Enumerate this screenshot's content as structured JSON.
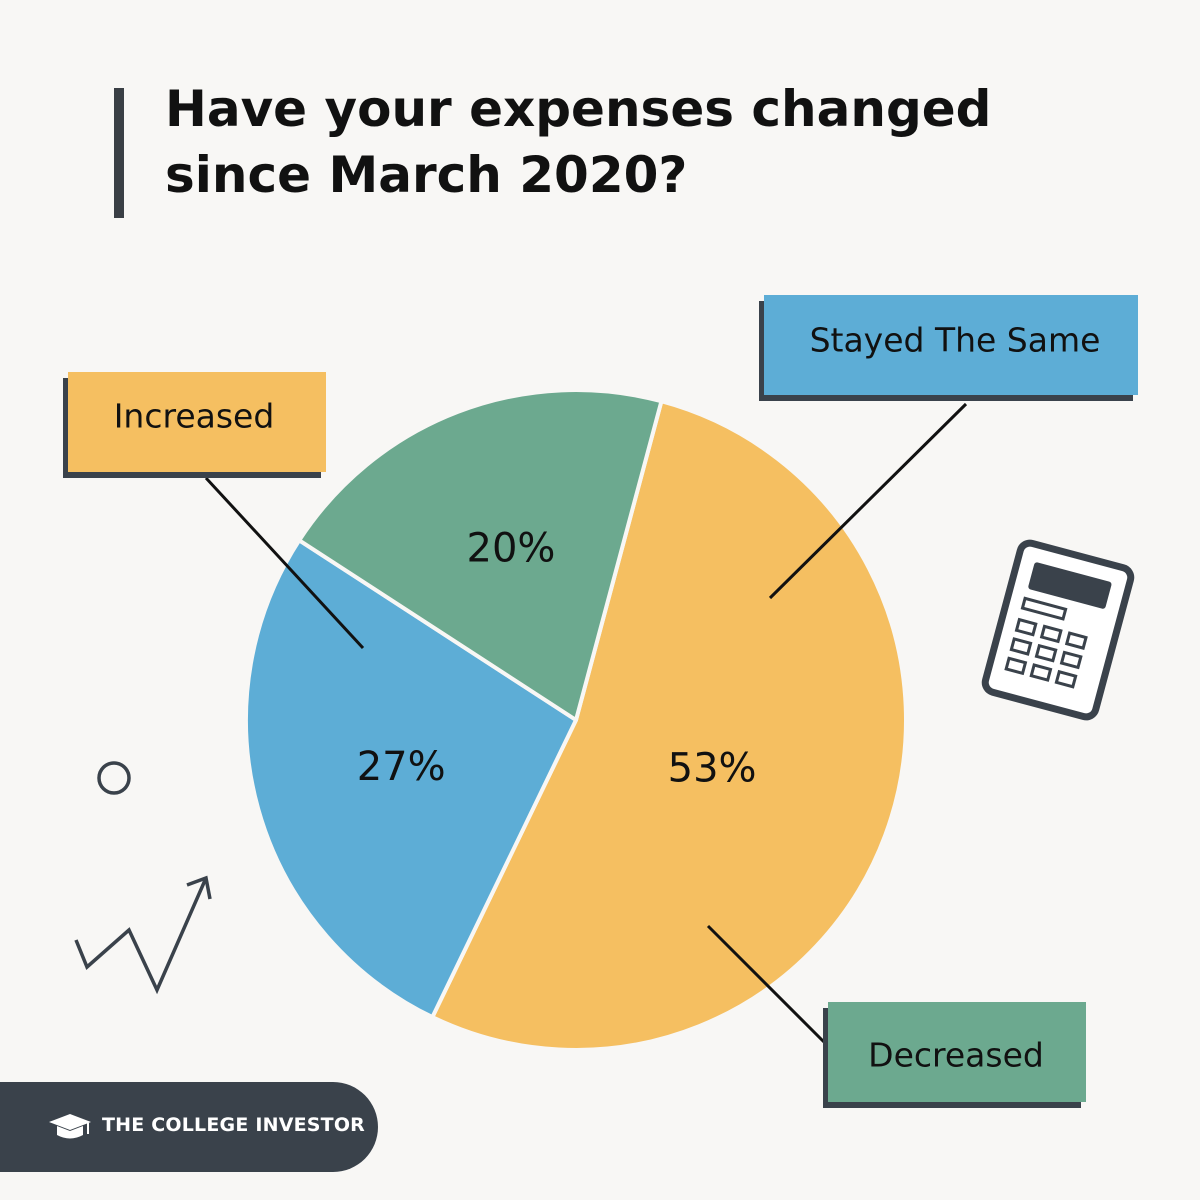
{
  "title": "Have your expenses changed since March 2020?",
  "colors": {
    "increased": "#f5bf61",
    "stayed_the_same": "#5dadd6",
    "decreased": "#6ca98f",
    "dark": "#3a424b"
  },
  "chart_data": {
    "type": "pie",
    "title": "Have your expenses changed since March 2020?",
    "categories": [
      "Increased",
      "Stayed The Same",
      "Decreased"
    ],
    "values": [
      53,
      27,
      20
    ],
    "value_labels": [
      "53%",
      "27%",
      "20%"
    ],
    "unit": "%"
  },
  "footer": {
    "brand": "THE COLLEGE INVESTOR",
    "icon": "graduation-cap-icon"
  },
  "decorations": [
    "calculator-icon",
    "circle-icon",
    "trend-arrow-icon"
  ]
}
